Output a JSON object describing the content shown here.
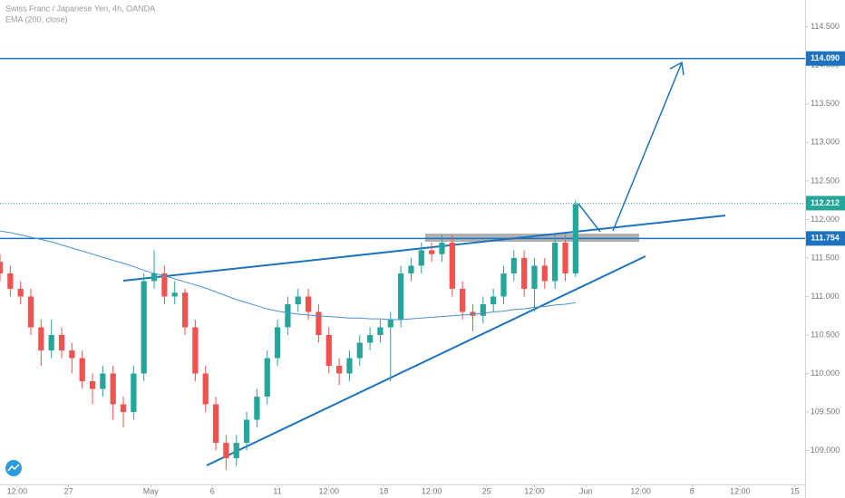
{
  "chart_data": {
    "type": "candlestick",
    "title": "Swiss Franc / Japanese Yen, 4h, OANDA",
    "ema": {
      "name": "EMA (200, close)",
      "color": "#4a90d9",
      "values": [
        111.85,
        111.83,
        111.8,
        111.77,
        111.74,
        111.71,
        111.67,
        111.63,
        111.59,
        111.55,
        111.51,
        111.47,
        111.43,
        111.39,
        111.34,
        111.3,
        111.27,
        111.23,
        111.19,
        111.15,
        111.11,
        111.06,
        111.01,
        110.96,
        110.92,
        110.88,
        110.84,
        110.81,
        110.79,
        110.77,
        110.76,
        110.75,
        110.74,
        110.73,
        110.72,
        110.72,
        110.71,
        110.71,
        110.7,
        110.7,
        110.71,
        110.72,
        110.73,
        110.74,
        110.75,
        110.76,
        110.77,
        110.78,
        110.8,
        110.81,
        110.83,
        110.84,
        110.86,
        110.87,
        110.89,
        110.9,
        110.92
      ]
    },
    "up_color": "#26a69a",
    "down_color": "#ef5350",
    "x": [
      0,
      3,
      6,
      9,
      12,
      15,
      18,
      21,
      24,
      27,
      30,
      33,
      36,
      39,
      42,
      45,
      48,
      51,
      54,
      57,
      60,
      63,
      66,
      69,
      72,
      75,
      78,
      81,
      84,
      87,
      90,
      93,
      96,
      99,
      102,
      105,
      108,
      111,
      114,
      117,
      120,
      123,
      126,
      129,
      132,
      135,
      138,
      141,
      144,
      147,
      150,
      153,
      156,
      159,
      162,
      165,
      168
    ],
    "open": [
      111.45,
      111.3,
      111.1,
      111.0,
      110.6,
      110.3,
      110.5,
      110.3,
      110.2,
      109.9,
      109.8,
      110.0,
      109.6,
      109.5,
      110.0,
      111.2,
      111.3,
      111.0,
      111.05,
      110.6,
      110.0,
      109.6,
      109.1,
      108.9,
      109.1,
      109.4,
      109.7,
      110.2,
      110.6,
      110.9,
      111.0,
      110.8,
      110.5,
      110.1,
      110.0,
      110.2,
      110.4,
      110.5,
      110.6,
      110.7,
      111.3,
      111.4,
      111.6,
      111.55,
      111.7,
      111.1,
      110.8,
      110.75,
      110.9,
      111.0,
      111.3,
      111.5,
      111.1,
      111.4,
      111.2,
      111.7,
      111.3
    ],
    "high": [
      111.55,
      111.4,
      111.2,
      111.1,
      110.7,
      110.7,
      110.6,
      110.4,
      110.3,
      110.0,
      110.1,
      110.1,
      109.7,
      110.1,
      111.3,
      111.6,
      111.4,
      111.2,
      111.1,
      110.7,
      110.1,
      109.7,
      109.2,
      109.2,
      109.5,
      109.8,
      110.3,
      110.7,
      111.0,
      111.1,
      111.1,
      110.9,
      110.6,
      110.2,
      110.3,
      110.5,
      110.6,
      110.7,
      110.8,
      111.4,
      111.5,
      111.7,
      111.7,
      111.8,
      111.8,
      111.2,
      110.9,
      111.0,
      111.1,
      111.4,
      111.6,
      111.6,
      111.5,
      111.5,
      111.8,
      111.8,
      112.25
    ],
    "low": [
      111.2,
      111.0,
      110.9,
      110.5,
      110.1,
      110.2,
      110.2,
      110.0,
      109.8,
      109.6,
      109.7,
      109.4,
      109.3,
      109.4,
      109.9,
      111.1,
      110.9,
      110.9,
      110.5,
      109.9,
      109.5,
      109.0,
      108.75,
      108.8,
      109.0,
      109.3,
      109.6,
      110.1,
      110.5,
      110.8,
      110.7,
      110.4,
      110.0,
      109.85,
      109.9,
      110.1,
      110.3,
      110.4,
      109.9,
      110.6,
      111.2,
      111.3,
      111.45,
      111.45,
      111.0,
      110.7,
      110.55,
      110.65,
      110.8,
      110.9,
      111.2,
      111.0,
      110.8,
      111.1,
      111.1,
      111.2,
      111.25
    ],
    "close": [
      111.3,
      111.1,
      111.0,
      110.6,
      110.3,
      110.5,
      110.3,
      110.2,
      109.9,
      109.8,
      110.0,
      109.6,
      109.5,
      110.0,
      111.2,
      111.3,
      111.0,
      111.05,
      110.6,
      110.0,
      109.6,
      109.1,
      108.9,
      109.1,
      109.4,
      109.7,
      110.2,
      110.6,
      110.9,
      111.0,
      110.8,
      110.5,
      110.1,
      110.0,
      110.2,
      110.4,
      110.5,
      110.6,
      110.7,
      111.3,
      111.4,
      111.6,
      111.55,
      111.7,
      111.1,
      110.8,
      110.75,
      110.9,
      111.0,
      111.3,
      111.5,
      111.1,
      111.4,
      111.2,
      111.7,
      111.3,
      112.2
    ],
    "xlim": [
      0,
      235
    ],
    "xticks": [
      {
        "value": 5,
        "label": "12:00"
      },
      {
        "value": 20,
        "label": "27"
      },
      {
        "value": 44,
        "label": "May"
      },
      {
        "value": 62,
        "label": "6"
      },
      {
        "value": 81,
        "label": "11"
      },
      {
        "value": 96,
        "label": "12:00"
      },
      {
        "value": 112,
        "label": "18"
      },
      {
        "value": 126,
        "label": "12:00"
      },
      {
        "value": 142,
        "label": "25"
      },
      {
        "value": 156,
        "label": "12:00"
      },
      {
        "value": 171,
        "label": "Jun"
      },
      {
        "value": 187,
        "label": "12:00"
      },
      {
        "value": 202,
        "label": "8"
      },
      {
        "value": 216,
        "label": "12:00"
      },
      {
        "value": 232,
        "label": "15"
      }
    ],
    "ylim": [
      108.56,
      114.85
    ],
    "yticks": [
      {
        "value": 109,
        "label": "109.000"
      },
      {
        "value": 109.5,
        "label": "109.500"
      },
      {
        "value": 110,
        "label": "110.000"
      },
      {
        "value": 110.5,
        "label": "110.500"
      },
      {
        "value": 111,
        "label": "111.000"
      },
      {
        "value": 111.5,
        "label": "111.500"
      },
      {
        "value": 112,
        "label": "112.000"
      },
      {
        "value": 112.5,
        "label": "112.500"
      },
      {
        "value": 113,
        "label": "113.000"
      },
      {
        "value": 113.5,
        "label": "113.500"
      },
      {
        "value": 114,
        "label": "114.000"
      },
      {
        "value": 114.5,
        "label": "114.500"
      }
    ],
    "levels": [
      {
        "value": 114.09,
        "label": "114.090",
        "color": "#1e73be"
      },
      {
        "value": 111.754,
        "label": "111.754",
        "color": "#1e73be"
      }
    ],
    "last_price": {
      "value": 112.212,
      "label": "112.212",
      "color": "#26a69a"
    }
  }
}
